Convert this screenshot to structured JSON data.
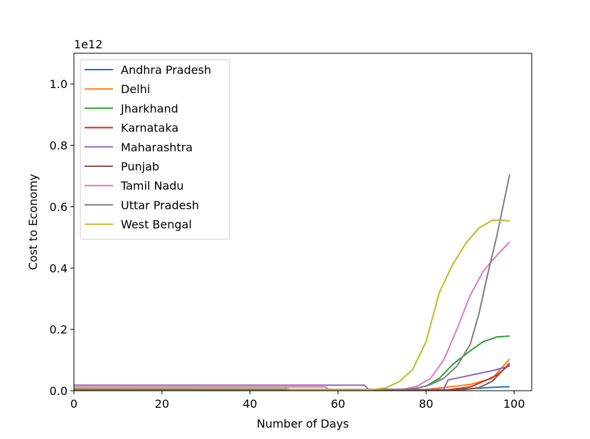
{
  "chart_data": {
    "type": "line",
    "xlabel": "Number of Days",
    "ylabel": "Cost to Economy",
    "y_offset_label": "1e12",
    "xlim": [
      0,
      104
    ],
    "ylim": [
      0,
      1.1
    ],
    "xticks": [
      0,
      20,
      40,
      60,
      80,
      100
    ],
    "xtick_labels": [
      "0",
      "20",
      "40",
      "60",
      "80",
      "100"
    ],
    "yticks": [
      0.0,
      0.2,
      0.4,
      0.6,
      0.8,
      1.0
    ],
    "ytick_labels": [
      "0.0",
      "0.2",
      "0.4",
      "0.6",
      "0.8",
      "1.0"
    ],
    "grid": false,
    "legend_position": "upper-left",
    "series": [
      {
        "name": "Andhra Pradesh",
        "color": "#1f77b4",
        "x": [
          0,
          70,
          85,
          90,
          95,
          99
        ],
        "y": [
          0.002,
          0.002,
          0.003,
          0.006,
          0.011,
          0.013
        ]
      },
      {
        "name": "Delhi",
        "color": "#ff7f0e",
        "x": [
          0,
          80,
          85,
          90,
          95,
          99
        ],
        "y": [
          0.003,
          0.004,
          0.012,
          0.02,
          0.04,
          0.103
        ]
      },
      {
        "name": "Jharkhand",
        "color": "#2ca02c",
        "x": [
          0,
          72,
          77,
          80,
          83,
          86,
          90,
          93,
          96,
          99
        ],
        "y": [
          0.003,
          0.003,
          0.006,
          0.015,
          0.04,
          0.085,
          0.13,
          0.16,
          0.175,
          0.178
        ]
      },
      {
        "name": "Karnataka",
        "color": "#d62728",
        "x": [
          0,
          85,
          90,
          93,
          96,
          99
        ],
        "y": [
          0.004,
          0.003,
          0.012,
          0.03,
          0.05,
          0.085
        ]
      },
      {
        "name": "Maharashtra",
        "color": "#9467bd",
        "x": [
          0,
          66,
          67,
          84,
          85,
          90,
          95,
          99
        ],
        "y": [
          0.018,
          0.018,
          0.003,
          0.004,
          0.035,
          0.05,
          0.065,
          0.08
        ]
      },
      {
        "name": "Punjab",
        "color": "#8c564b",
        "x": [
          0,
          88,
          92,
          95,
          97,
          99
        ],
        "y": [
          0.002,
          0.002,
          0.01,
          0.03,
          0.06,
          0.09
        ]
      },
      {
        "name": "Tamil Nadu",
        "color": "#e377c2",
        "x": [
          0,
          57,
          58,
          75,
          78,
          81,
          84,
          87,
          90,
          93,
          96,
          99
        ],
        "y": [
          0.012,
          0.012,
          0.004,
          0.005,
          0.015,
          0.04,
          0.1,
          0.2,
          0.31,
          0.39,
          0.44,
          0.485
        ]
      },
      {
        "name": "Uttar Pradesh",
        "color": "#7f7f7f",
        "x": [
          0,
          74,
          78,
          81,
          84,
          87,
          90,
          92,
          94,
          96,
          99
        ],
        "y": [
          0.005,
          0.004,
          0.008,
          0.02,
          0.04,
          0.08,
          0.15,
          0.25,
          0.38,
          0.5,
          0.705
        ]
      },
      {
        "name": "West Bengal",
        "color": "#bcbd22",
        "x": [
          0,
          48,
          49,
          68,
          71,
          74,
          77,
          80,
          83,
          86,
          89,
          92,
          95,
          97,
          99
        ],
        "y": [
          0.01,
          0.01,
          0.004,
          0.004,
          0.01,
          0.03,
          0.07,
          0.16,
          0.32,
          0.41,
          0.48,
          0.53,
          0.555,
          0.557,
          0.553
        ]
      }
    ]
  }
}
